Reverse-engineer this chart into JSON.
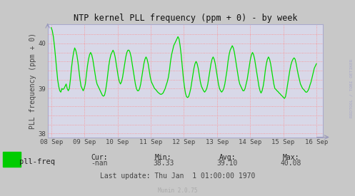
{
  "title": "NTP kernel PLL frequency (ppm + 0) - by week",
  "ylabel": "PLL frequency (ppm + 0)",
  "bg_color": "#c8c8c8",
  "plot_bg_color": "#d8d8e8",
  "line_color": "#00dd00",
  "grid_color": "#ff8888",
  "text_color": "#444444",
  "title_color": "#111111",
  "legend_label": "pll-freq",
  "legend_color": "#00cc00",
  "stats": {
    "cur": "-nan",
    "min": "38.33",
    "avg": "39.10",
    "max": "40.08"
  },
  "last_update": "Thu Jan  1 01:00:00 1970",
  "munin_version": "Munin 2.0.75",
  "watermark": "RRDTOOL / TOBI OETIKER",
  "y_data": [
    40.35,
    40.28,
    40.15,
    39.95,
    39.7,
    39.45,
    39.2,
    39.05,
    38.95,
    38.92,
    39.0,
    38.98,
    39.0,
    39.05,
    39.1,
    39.0,
    38.95,
    39.0,
    39.2,
    39.45,
    39.65,
    39.8,
    39.9,
    39.85,
    39.75,
    39.6,
    39.4,
    39.2,
    39.05,
    39.0,
    38.95,
    39.0,
    39.1,
    39.3,
    39.5,
    39.65,
    39.75,
    39.8,
    39.75,
    39.65,
    39.5,
    39.35,
    39.2,
    39.1,
    39.05,
    39.0,
    38.95,
    38.9,
    38.85,
    38.83,
    38.85,
    38.95,
    39.1,
    39.3,
    39.5,
    39.65,
    39.75,
    39.8,
    39.85,
    39.8,
    39.7,
    39.55,
    39.4,
    39.25,
    39.15,
    39.1,
    39.15,
    39.25,
    39.4,
    39.55,
    39.7,
    39.8,
    39.85,
    39.85,
    39.8,
    39.7,
    39.55,
    39.4,
    39.25,
    39.1,
    39.0,
    38.95,
    38.95,
    39.0,
    39.1,
    39.25,
    39.4,
    39.55,
    39.65,
    39.7,
    39.65,
    39.55,
    39.4,
    39.25,
    39.15,
    39.1,
    39.05,
    39.0,
    38.98,
    38.95,
    38.92,
    38.9,
    38.88,
    38.87,
    38.88,
    38.9,
    38.95,
    39.0,
    39.08,
    39.15,
    39.25,
    39.4,
    39.6,
    39.75,
    39.85,
    39.95,
    40.0,
    40.05,
    40.1,
    40.15,
    40.1,
    39.95,
    39.75,
    39.5,
    39.25,
    39.05,
    38.9,
    38.82,
    38.8,
    38.82,
    38.9,
    39.0,
    39.15,
    39.3,
    39.45,
    39.55,
    39.6,
    39.55,
    39.45,
    39.3,
    39.15,
    39.05,
    39.0,
    38.95,
    38.92,
    38.95,
    39.0,
    39.1,
    39.25,
    39.4,
    39.55,
    39.65,
    39.7,
    39.65,
    39.55,
    39.4,
    39.25,
    39.1,
    39.0,
    38.95,
    38.92,
    38.95,
    39.0,
    39.1,
    39.25,
    39.4,
    39.6,
    39.75,
    39.85,
    39.9,
    39.95,
    39.9,
    39.8,
    39.65,
    39.5,
    39.35,
    39.2,
    39.1,
    39.05,
    39.0,
    38.95,
    38.95,
    39.0,
    39.1,
    39.2,
    39.35,
    39.5,
    39.65,
    39.75,
    39.8,
    39.75,
    39.65,
    39.5,
    39.35,
    39.2,
    39.05,
    38.95,
    38.9,
    38.95,
    39.05,
    39.2,
    39.4,
    39.55,
    39.65,
    39.7,
    39.65,
    39.55,
    39.4,
    39.25,
    39.1,
    39.0,
    38.98,
    38.95,
    38.93,
    38.9,
    38.88,
    38.85,
    38.83,
    38.8,
    38.78,
    38.82,
    38.95,
    39.1,
    39.25,
    39.4,
    39.52,
    39.6,
    39.65,
    39.68,
    39.65,
    39.55,
    39.42,
    39.3,
    39.2,
    39.1,
    39.05,
    39.0,
    38.98,
    38.95,
    38.92,
    38.92,
    38.95,
    39.0,
    39.08,
    39.15,
    39.25,
    39.35,
    39.45,
    39.5,
    39.55
  ]
}
